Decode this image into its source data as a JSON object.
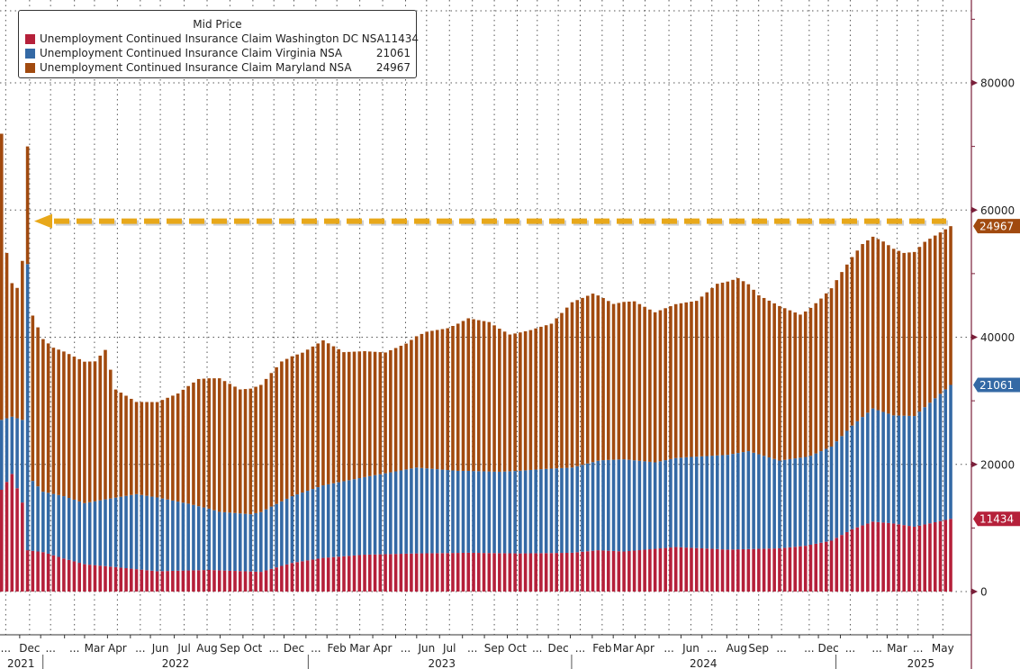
{
  "chart_data": {
    "type": "bar",
    "stacked": true,
    "title": "",
    "legend_title": "Mid Price",
    "legend_position": "top-left",
    "xlabel": "",
    "ylabel": "",
    "ylim": [
      -5000,
      92000
    ],
    "y_ticks": [
      0,
      20000,
      40000,
      60000,
      80000
    ],
    "y_tick_labels": [
      "0",
      "20000",
      "40000",
      "60000",
      "80000"
    ],
    "grid": true,
    "x_tick_labels": [
      {
        "label": "...",
        "pos": 0.006
      },
      {
        "label": "Dec",
        "pos": 0.031
      },
      {
        "label": "...",
        "pos": 0.053
      },
      {
        "label": "...",
        "pos": 0.078
      },
      {
        "label": "Mar",
        "pos": 0.099
      },
      {
        "label": "Apr",
        "pos": 0.123
      },
      {
        "label": "...",
        "pos": 0.147
      },
      {
        "label": "Jun",
        "pos": 0.168
      },
      {
        "label": "Jul",
        "pos": 0.193
      },
      {
        "label": "Aug",
        "pos": 0.217
      },
      {
        "label": "Sep",
        "pos": 0.241
      },
      {
        "label": "Oct",
        "pos": 0.265
      },
      {
        "label": "...",
        "pos": 0.287
      },
      {
        "label": "Dec",
        "pos": 0.308
      },
      {
        "label": "...",
        "pos": 0.331
      },
      {
        "label": "Feb",
        "pos": 0.353
      },
      {
        "label": "Mar",
        "pos": 0.377
      },
      {
        "label": "Apr",
        "pos": 0.401
      },
      {
        "label": "...",
        "pos": 0.425
      },
      {
        "label": "Jun",
        "pos": 0.447
      },
      {
        "label": "Jul",
        "pos": 0.471
      },
      {
        "label": "...",
        "pos": 0.495
      },
      {
        "label": "Sep",
        "pos": 0.518
      },
      {
        "label": "Oct",
        "pos": 0.542
      },
      {
        "label": "...",
        "pos": 0.563
      },
      {
        "label": "Dec",
        "pos": 0.585
      },
      {
        "label": "...",
        "pos": 0.608
      },
      {
        "label": "Feb",
        "pos": 0.631
      },
      {
        "label": "Mar",
        "pos": 0.653
      },
      {
        "label": "Apr",
        "pos": 0.676
      },
      {
        "label": "...",
        "pos": 0.701
      },
      {
        "label": "Jun",
        "pos": 0.724
      },
      {
        "label": "...",
        "pos": 0.746
      },
      {
        "label": "Aug",
        "pos": 0.772
      },
      {
        "label": "Sep",
        "pos": 0.795
      },
      {
        "label": "...",
        "pos": 0.819
      },
      {
        "label": "...",
        "pos": 0.848
      },
      {
        "label": "Dec",
        "pos": 0.868
      },
      {
        "label": "...",
        "pos": 0.891
      },
      {
        "label": "...",
        "pos": 0.919
      },
      {
        "label": "Mar",
        "pos": 0.94
      },
      {
        "label": "...",
        "pos": 0.962
      },
      {
        "label": "May",
        "pos": 0.988
      }
    ],
    "year_labels": [
      {
        "label": "2021",
        "pos": 0.022
      },
      {
        "label": "2022",
        "pos": 0.184
      },
      {
        "label": "2023",
        "pos": 0.463
      },
      {
        "label": "2024",
        "pos": 0.737
      },
      {
        "label": "2025",
        "pos": 0.965
      }
    ],
    "year_separators": [
      0.045,
      0.323,
      0.599,
      0.876
    ],
    "series_keyframes_note": "values per weekly bar, reconstructed below from keyframes",
    "series": [
      {
        "name": "Unemployment Continued Insurance Claim Washington DC NSA",
        "last_value": "11434",
        "color": "#b5203a",
        "keyframes": [
          [
            0,
            16000
          ],
          [
            2,
            18500
          ],
          [
            4,
            14000
          ],
          [
            5,
            6500
          ],
          [
            8,
            6200
          ],
          [
            12,
            5200
          ],
          [
            16,
            4300
          ],
          [
            20,
            4000
          ],
          [
            30,
            3200
          ],
          [
            40,
            3400
          ],
          [
            50,
            3100
          ],
          [
            56,
            4500
          ],
          [
            62,
            5300
          ],
          [
            70,
            5800
          ],
          [
            80,
            6000
          ],
          [
            90,
            6100
          ],
          [
            100,
            6000
          ],
          [
            110,
            6100
          ],
          [
            115,
            6500
          ],
          [
            120,
            6300
          ],
          [
            130,
            7000
          ],
          [
            140,
            6600
          ],
          [
            150,
            6800
          ],
          [
            155,
            7200
          ],
          [
            160,
            8000
          ],
          [
            164,
            9800
          ],
          [
            168,
            11000
          ],
          [
            172,
            10700
          ],
          [
            176,
            10200
          ],
          [
            183,
            11434
          ]
        ]
      },
      {
        "name": "Unemployment Continued Insurance Claim Virginia NSA",
        "last_value": "21061",
        "color": "#3469a5",
        "keyframes": [
          [
            0,
            11000
          ],
          [
            2,
            9000
          ],
          [
            4,
            13000
          ],
          [
            5,
            45000
          ],
          [
            6,
            11000
          ],
          [
            8,
            9500
          ],
          [
            12,
            9800
          ],
          [
            16,
            9600
          ],
          [
            20,
            10500
          ],
          [
            26,
            11800
          ],
          [
            30,
            11600
          ],
          [
            36,
            10500
          ],
          [
            42,
            9200
          ],
          [
            48,
            9000
          ],
          [
            52,
            9800
          ],
          [
            56,
            10500
          ],
          [
            62,
            11400
          ],
          [
            70,
            12200
          ],
          [
            80,
            13500
          ],
          [
            88,
            12900
          ],
          [
            96,
            12800
          ],
          [
            104,
            13200
          ],
          [
            110,
            13400
          ],
          [
            116,
            14200
          ],
          [
            120,
            14500
          ],
          [
            126,
            13600
          ],
          [
            132,
            14200
          ],
          [
            140,
            14900
          ],
          [
            144,
            15400
          ],
          [
            150,
            13800
          ],
          [
            156,
            14000
          ],
          [
            160,
            14800
          ],
          [
            164,
            16300
          ],
          [
            168,
            17800
          ],
          [
            172,
            17000
          ],
          [
            176,
            17400
          ],
          [
            183,
            21061
          ]
        ]
      },
      {
        "name": "Unemployment Continued Insurance Claim Maryland NSA",
        "last_value": "24967",
        "color": "#a14a0f",
        "keyframes": [
          [
            0,
            45000
          ],
          [
            1,
            26000
          ],
          [
            2,
            21000
          ],
          [
            3,
            20500
          ],
          [
            4,
            25000
          ],
          [
            5,
            18500
          ],
          [
            6,
            26000
          ],
          [
            8,
            24000
          ],
          [
            10,
            23000
          ],
          [
            14,
            22500
          ],
          [
            18,
            22000
          ],
          [
            20,
            23500
          ],
          [
            22,
            17000
          ],
          [
            26,
            14500
          ],
          [
            30,
            15000
          ],
          [
            34,
            17000
          ],
          [
            38,
            20000
          ],
          [
            42,
            21000
          ],
          [
            46,
            19500
          ],
          [
            50,
            20000
          ],
          [
            54,
            22000
          ],
          [
            58,
            22000
          ],
          [
            62,
            22800
          ],
          [
            66,
            20300
          ],
          [
            70,
            19800
          ],
          [
            74,
            19000
          ],
          [
            78,
            19800
          ],
          [
            82,
            21500
          ],
          [
            86,
            22300
          ],
          [
            90,
            24000
          ],
          [
            94,
            23500
          ],
          [
            98,
            21500
          ],
          [
            102,
            22000
          ],
          [
            106,
            22800
          ],
          [
            110,
            26000
          ],
          [
            114,
            26500
          ],
          [
            118,
            24500
          ],
          [
            122,
            25000
          ],
          [
            126,
            23600
          ],
          [
            130,
            24200
          ],
          [
            134,
            24500
          ],
          [
            138,
            27000
          ],
          [
            142,
            27500
          ],
          [
            146,
            25000
          ],
          [
            150,
            24300
          ],
          [
            154,
            22500
          ],
          [
            158,
            24000
          ],
          [
            162,
            25800
          ],
          [
            166,
            27200
          ],
          [
            170,
            26800
          ],
          [
            174,
            25600
          ],
          [
            178,
            26000
          ],
          [
            183,
            24967
          ]
        ]
      }
    ],
    "n_bars": 184,
    "annotations": [
      {
        "type": "dashed-arrow",
        "label": "",
        "value": 57462,
        "color": "#e8a81a",
        "direction": "left"
      }
    ],
    "right_axis_badges": [
      {
        "text": "24967",
        "value": 57462,
        "color": "#a14a0f"
      },
      {
        "text": "21061",
        "value": 32495,
        "color": "#3469a5"
      },
      {
        "text": "11434",
        "value": 11434,
        "color": "#b5203a"
      }
    ]
  }
}
